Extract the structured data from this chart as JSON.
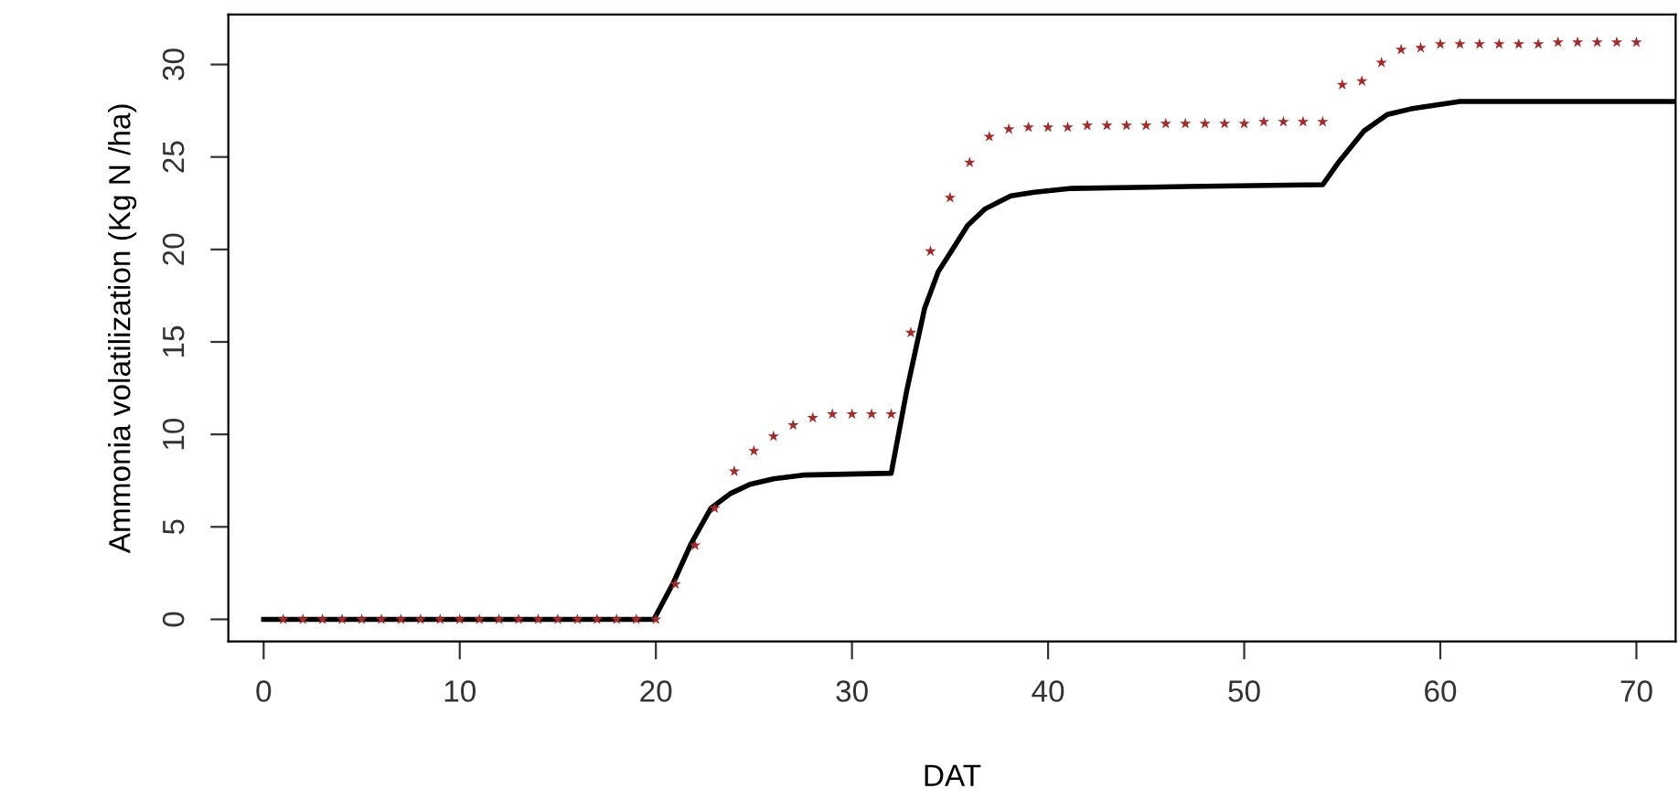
{
  "chart_data": {
    "type": "line",
    "xlabel": "DAT",
    "ylabel": "Ammonia volatilization (Kg N /ha)",
    "xlim": [
      -1.8,
      72
    ],
    "ylim": [
      -1.2,
      32.7
    ],
    "xticks": [
      0,
      10,
      20,
      30,
      40,
      50,
      60,
      70
    ],
    "yticks": [
      0,
      5,
      10,
      15,
      20,
      25,
      30
    ],
    "grid": false,
    "legend": false,
    "series": [
      {
        "color": "#000000",
        "line_style": "solid",
        "marker": "none",
        "x": [
          0,
          19.9,
          20.9,
          21.8,
          22.8,
          23.8,
          24.8,
          26.0,
          27.5,
          32.0,
          32.8,
          33.7,
          34.4,
          35.0,
          35.9,
          36.8,
          38.1,
          39.3,
          41.2,
          47.1,
          54.0,
          54.8,
          56.1,
          57.3,
          58.5,
          61.0,
          72
        ],
        "values": [
          0,
          0,
          2.0,
          4.1,
          6.0,
          6.8,
          7.3,
          7.6,
          7.8,
          7.9,
          12.4,
          16.8,
          18.8,
          19.8,
          21.3,
          22.2,
          22.9,
          23.1,
          23.3,
          23.4,
          23.5,
          24.7,
          26.4,
          27.3,
          27.6,
          28.0,
          28.0
        ]
      },
      {
        "type": "scatter",
        "color": "#a52a2a",
        "marker": "star",
        "x": [
          1,
          2,
          3,
          4,
          5,
          6,
          7,
          8,
          9,
          10,
          11,
          12,
          13,
          14,
          15,
          16,
          17,
          18,
          19,
          20,
          21,
          22,
          23,
          24,
          25,
          26,
          27,
          28,
          29,
          30,
          31,
          32,
          33,
          34,
          35,
          36,
          37,
          38,
          39,
          40,
          41,
          42,
          43,
          44,
          45,
          46,
          47,
          48,
          49,
          50,
          51,
          52,
          53,
          54,
          55,
          56,
          57,
          58,
          59,
          60,
          61,
          62,
          63,
          64,
          65,
          66,
          67,
          68,
          69,
          70
        ],
        "values": [
          0,
          0,
          0,
          0,
          0,
          0,
          0,
          0,
          0,
          0,
          0,
          0,
          0,
          0,
          0,
          0,
          0,
          0,
          0,
          0,
          1.9,
          4.0,
          6.0,
          8.0,
          9.1,
          9.9,
          10.5,
          10.9,
          11.1,
          11.1,
          11.1,
          11.1,
          15.5,
          19.9,
          22.8,
          24.7,
          26.1,
          26.5,
          26.6,
          26.6,
          26.6,
          26.7,
          26.7,
          26.7,
          26.7,
          26.8,
          26.8,
          26.8,
          26.8,
          26.8,
          26.9,
          26.9,
          26.9,
          26.9,
          28.9,
          29.1,
          30.1,
          30.8,
          30.9,
          31.1,
          31.1,
          31.1,
          31.1,
          31.1,
          31.1,
          31.2,
          31.2,
          31.2,
          31.2,
          31.2
        ]
      }
    ]
  }
}
